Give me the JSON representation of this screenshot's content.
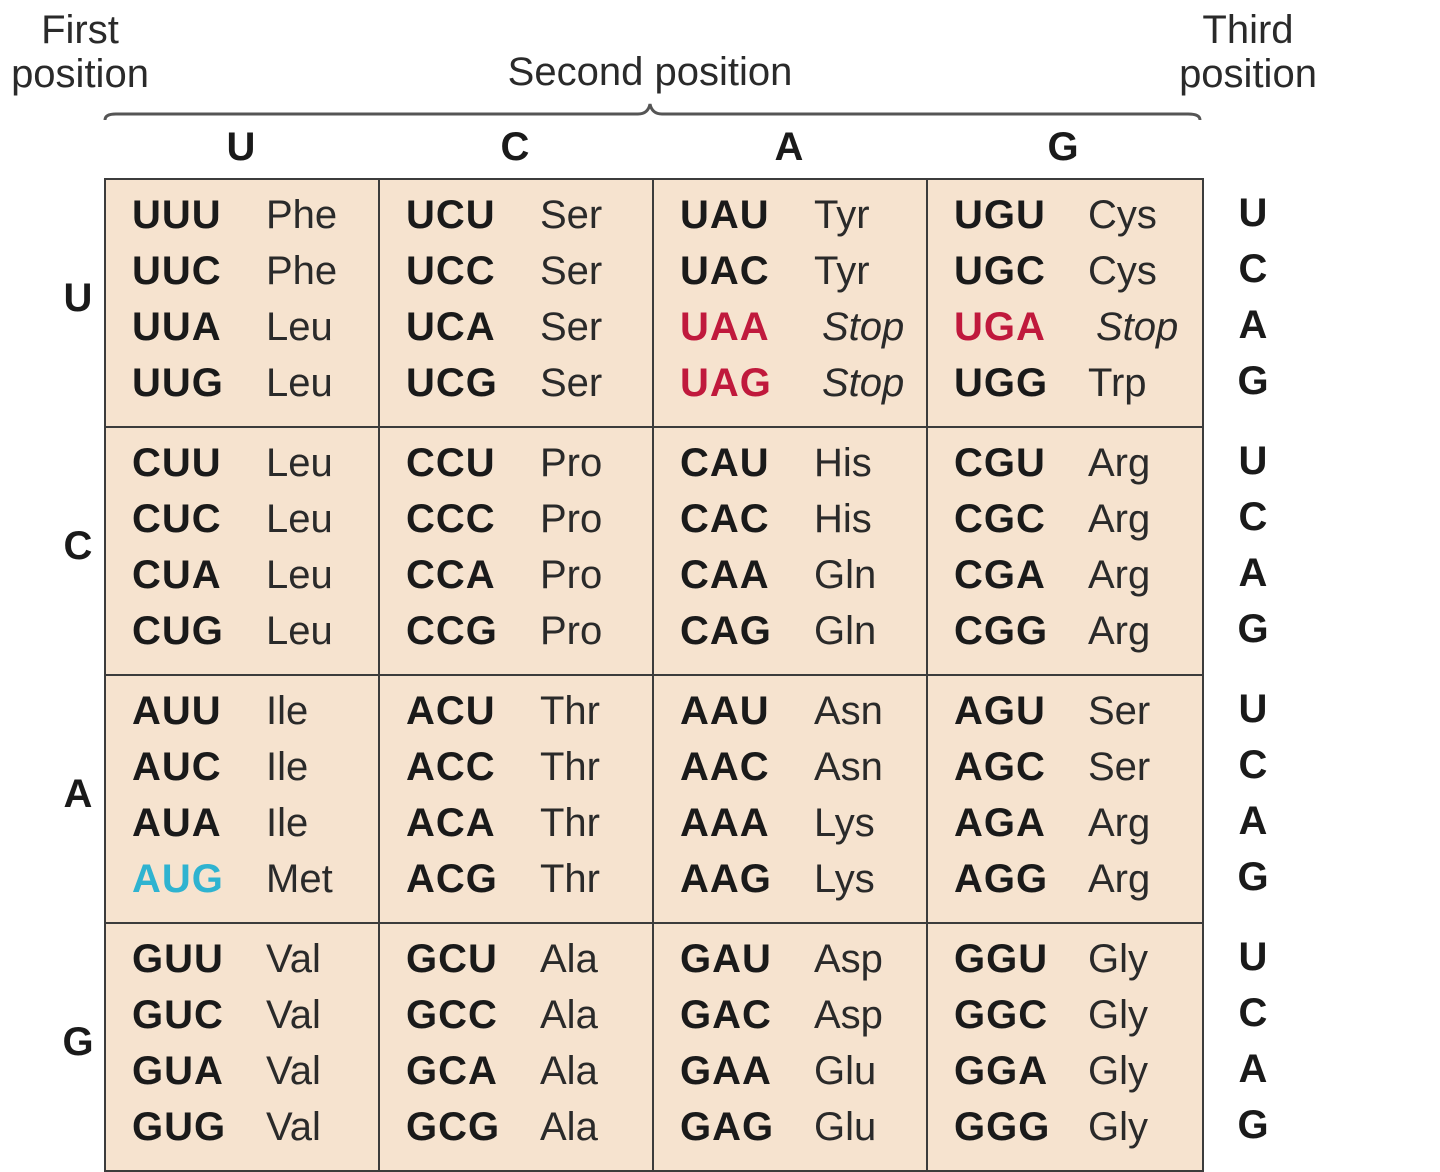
{
  "headers": {
    "first": [
      "First",
      "position"
    ],
    "second": "Second position",
    "third": [
      "Third",
      "position"
    ]
  },
  "colors": {
    "stop": "#c0193c",
    "start": "#2fb3d0",
    "cell_bg": "#f6e3cf"
  },
  "bases": [
    "U",
    "C",
    "A",
    "G"
  ],
  "rows": [
    {
      "base": "U",
      "blocks": [
        {
          "codons": [
            [
              "UUU",
              "Phe",
              ""
            ],
            [
              "UUC",
              "Phe",
              ""
            ],
            [
              "UUA",
              "Leu",
              ""
            ],
            [
              "UUG",
              "Leu",
              ""
            ]
          ]
        },
        {
          "codons": [
            [
              "UCU",
              "Ser",
              ""
            ],
            [
              "UCC",
              "Ser",
              ""
            ],
            [
              "UCA",
              "Ser",
              ""
            ],
            [
              "UCG",
              "Ser",
              ""
            ]
          ]
        },
        {
          "codons": [
            [
              "UAU",
              "Tyr",
              ""
            ],
            [
              "UAC",
              "Tyr",
              ""
            ],
            [
              "UAA",
              "Stop",
              "stop"
            ],
            [
              "UAG",
              "Stop",
              "stop"
            ]
          ]
        },
        {
          "codons": [
            [
              "UGU",
              "Cys",
              ""
            ],
            [
              "UGC",
              "Cys",
              ""
            ],
            [
              "UGA",
              "Stop",
              "stop"
            ],
            [
              "UGG",
              "Trp",
              ""
            ]
          ]
        }
      ]
    },
    {
      "base": "C",
      "blocks": [
        {
          "codons": [
            [
              "CUU",
              "Leu",
              ""
            ],
            [
              "CUC",
              "Leu",
              ""
            ],
            [
              "CUA",
              "Leu",
              ""
            ],
            [
              "CUG",
              "Leu",
              ""
            ]
          ]
        },
        {
          "codons": [
            [
              "CCU",
              "Pro",
              ""
            ],
            [
              "CCC",
              "Pro",
              ""
            ],
            [
              "CCA",
              "Pro",
              ""
            ],
            [
              "CCG",
              "Pro",
              ""
            ]
          ]
        },
        {
          "codons": [
            [
              "CAU",
              "His",
              ""
            ],
            [
              "CAC",
              "His",
              ""
            ],
            [
              "CAA",
              "Gln",
              ""
            ],
            [
              "CAG",
              "Gln",
              ""
            ]
          ]
        },
        {
          "codons": [
            [
              "CGU",
              "Arg",
              ""
            ],
            [
              "CGC",
              "Arg",
              ""
            ],
            [
              "CGA",
              "Arg",
              ""
            ],
            [
              "CGG",
              "Arg",
              ""
            ]
          ]
        }
      ]
    },
    {
      "base": "A",
      "blocks": [
        {
          "codons": [
            [
              "AUU",
              "Ile",
              ""
            ],
            [
              "AUC",
              "Ile",
              ""
            ],
            [
              "AUA",
              "Ile",
              ""
            ],
            [
              "AUG",
              "Met",
              "start"
            ]
          ]
        },
        {
          "codons": [
            [
              "ACU",
              "Thr",
              ""
            ],
            [
              "ACC",
              "Thr",
              ""
            ],
            [
              "ACA",
              "Thr",
              ""
            ],
            [
              "ACG",
              "Thr",
              ""
            ]
          ]
        },
        {
          "codons": [
            [
              "AAU",
              "Asn",
              ""
            ],
            [
              "AAC",
              "Asn",
              ""
            ],
            [
              "AAA",
              "Lys",
              ""
            ],
            [
              "AAG",
              "Lys",
              ""
            ]
          ]
        },
        {
          "codons": [
            [
              "AGU",
              "Ser",
              ""
            ],
            [
              "AGC",
              "Ser",
              ""
            ],
            [
              "AGA",
              "Arg",
              ""
            ],
            [
              "AGG",
              "Arg",
              ""
            ]
          ]
        }
      ]
    },
    {
      "base": "G",
      "blocks": [
        {
          "codons": [
            [
              "GUU",
              "Val",
              ""
            ],
            [
              "GUC",
              "Val",
              ""
            ],
            [
              "GUA",
              "Val",
              ""
            ],
            [
              "GUG",
              "Val",
              ""
            ]
          ]
        },
        {
          "codons": [
            [
              "GCU",
              "Ala",
              ""
            ],
            [
              "GCC",
              "Ala",
              ""
            ],
            [
              "GCA",
              "Ala",
              ""
            ],
            [
              "GCG",
              "Ala",
              ""
            ]
          ]
        },
        {
          "codons": [
            [
              "GAU",
              "Asp",
              ""
            ],
            [
              "GAC",
              "Asp",
              ""
            ],
            [
              "GAA",
              "Glu",
              ""
            ],
            [
              "GAG",
              "Glu",
              ""
            ]
          ]
        },
        {
          "codons": [
            [
              "GGU",
              "Gly",
              ""
            ],
            [
              "GGC",
              "Gly",
              ""
            ],
            [
              "GGA",
              "Gly",
              ""
            ],
            [
              "GGG",
              "Gly",
              ""
            ]
          ]
        }
      ]
    }
  ]
}
